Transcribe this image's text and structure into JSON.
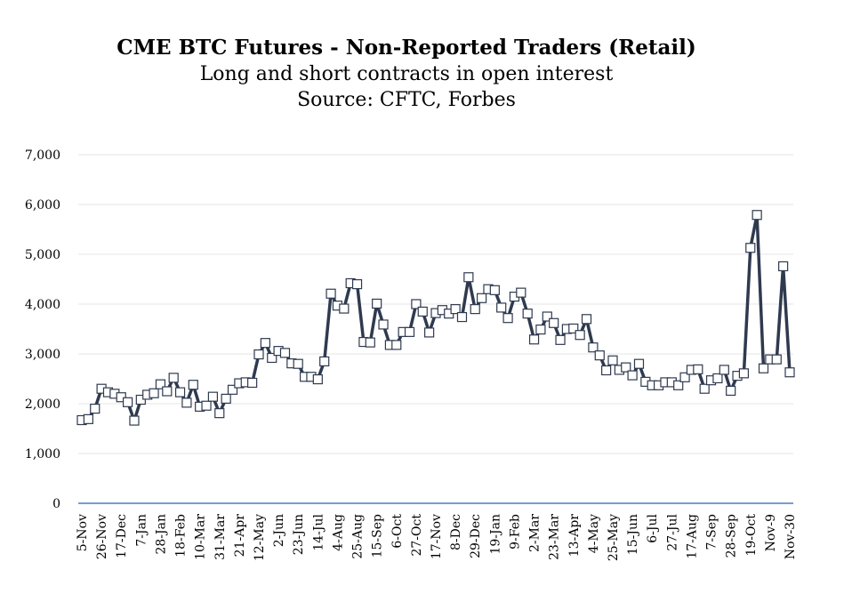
{
  "chart_data": {
    "type": "line",
    "title": "CME BTC Futures - Non-Reported Traders (Retail)",
    "subtitle": "Long and short contracts in open interest",
    "source": "Source: CFTC, Forbes",
    "xlabel": "",
    "ylabel": "",
    "ylim": [
      0,
      7000
    ],
    "grid": true,
    "legend": "none",
    "y_ticks": [
      "0",
      "1,000",
      "2,000",
      "3,000",
      "4,000",
      "5,000",
      "6,000",
      "7,000"
    ],
    "x_tick_labels": [
      "5-Nov",
      "26-Nov",
      "17-Dec",
      "7-Jan",
      "28-Jan",
      "18-Feb",
      "10-Mar",
      "31-Mar",
      "21-Apr",
      "12-May",
      "2-Jun",
      "23-Jun",
      "14-Jul",
      "4-Aug",
      "25-Aug",
      "15-Sep",
      "6-Oct",
      "27-Oct",
      "17-Nov",
      "8-Dec",
      "29-Dec",
      "19-Jan",
      "9-Feb",
      "2-Mar",
      "23-Mar",
      "13-Apr",
      "4-May",
      "25-May",
      "15-Jun",
      "6-Jul",
      "27-Jul",
      "17-Aug",
      "7-Sep",
      "28-Sep",
      "19-Oct",
      "Nov-9",
      "Nov-30"
    ],
    "colors": {
      "line": "#2f3a4f",
      "marker_fill": "#ffffff",
      "axis": "#4a7fc1",
      "grid": "#e6e6e6"
    },
    "series": [
      {
        "values": [
          1670,
          1690,
          1900,
          2300,
          2230,
          2200,
          2130,
          2030,
          1660,
          2080,
          2180,
          2210,
          2390,
          2250,
          2520,
          2230,
          2020,
          2380,
          1940,
          1960,
          2140,
          1810,
          2100,
          2280,
          2410,
          2430,
          2420,
          2990,
          3220,
          2920,
          3060,
          3020,
          2810,
          2800,
          2540,
          2540,
          2490,
          2850,
          4210,
          3970,
          3910,
          4420,
          4400,
          3240,
          3230,
          4010,
          3590,
          3180,
          3180,
          3440,
          3440,
          4000,
          3850,
          3430,
          3820,
          3880,
          3810,
          3900,
          3740,
          4540,
          3900,
          4120,
          4300,
          4280,
          3930,
          3720,
          4150,
          4230,
          3810,
          3290,
          3490,
          3750,
          3620,
          3280,
          3500,
          3510,
          3380,
          3700,
          3130,
          2970,
          2670,
          2870,
          2680,
          2730,
          2570,
          2800,
          2440,
          2370,
          2370,
          2430,
          2430,
          2370,
          2530,
          2680,
          2690,
          2300,
          2470,
          2510,
          2680,
          2260,
          2560,
          2610,
          5130,
          5790,
          2710,
          2890,
          2890,
          4760,
          2630
        ]
      }
    ]
  }
}
